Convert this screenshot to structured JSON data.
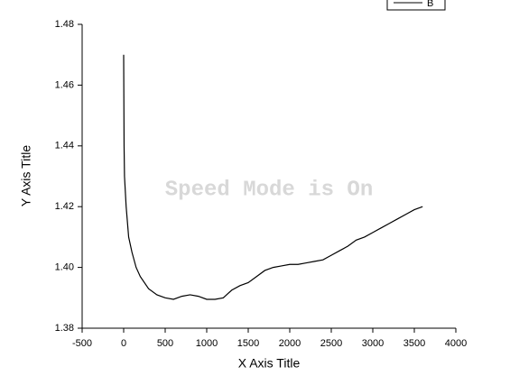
{
  "chart_data": {
    "type": "line",
    "xlabel": "X Axis Title",
    "ylabel": "Y Axis Title",
    "annotation": "Speed Mode is On",
    "x": [
      0,
      5,
      10,
      30,
      60,
      100,
      150,
      200,
      300,
      400,
      500,
      600,
      700,
      800,
      900,
      1000,
      1100,
      1200,
      1300,
      1400,
      1500,
      1600,
      1700,
      1800,
      1900,
      2000,
      2100,
      2200,
      2300,
      2400,
      2500,
      2600,
      2700,
      2800,
      2900,
      3000,
      3100,
      3200,
      3300,
      3400,
      3500,
      3600
    ],
    "series": [
      {
        "name": "B",
        "color": "#000000",
        "values": [
          1.47,
          1.44,
          1.43,
          1.42,
          1.41,
          1.405,
          1.4,
          1.397,
          1.393,
          1.391,
          1.39,
          1.3895,
          1.3905,
          1.391,
          1.3905,
          1.3895,
          1.3895,
          1.39,
          1.3925,
          1.394,
          1.395,
          1.397,
          1.399,
          1.4,
          1.4005,
          1.401,
          1.401,
          1.4015,
          1.402,
          1.4025,
          1.404,
          1.4055,
          1.407,
          1.409,
          1.41,
          1.4115,
          1.413,
          1.4145,
          1.416,
          1.4175,
          1.419,
          1.42
        ]
      }
    ],
    "xlim": [
      -500,
      4000
    ],
    "xticks": [
      -500,
      0,
      500,
      1000,
      1500,
      2000,
      2500,
      3000,
      3500,
      4000
    ],
    "ylim": [
      1.38,
      1.48
    ],
    "yticks": [
      1.38,
      {
        "value": 1.4,
        "label": "1.40"
      },
      1.42,
      1.44,
      1.46,
      1.48
    ],
    "legend": "upper right"
  }
}
